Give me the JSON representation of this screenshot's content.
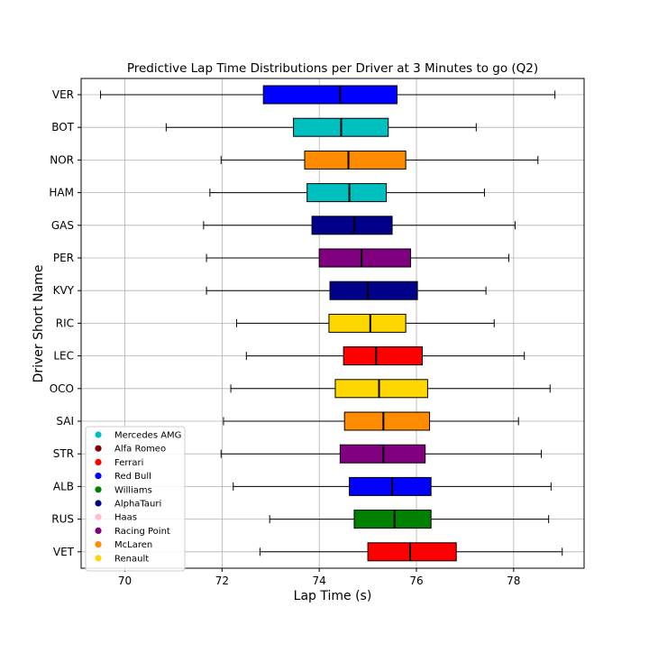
{
  "chart_data": {
    "type": "boxplot",
    "orientation": "horizontal",
    "title": "Predictive Lap Time Distributions per Driver at 3 Minutes to go (Q2)",
    "xlabel": "Lap Time (s)",
    "ylabel": "Driver Short Name",
    "xlim": [
      69.1,
      79.45
    ],
    "xticks": [
      70,
      72,
      74,
      76,
      78
    ],
    "grid": true,
    "legend_position": "lower-left",
    "legend": [
      {
        "team": "Mercedes AMG",
        "color": "#00bfbf"
      },
      {
        "team": "Alfa Romeo",
        "color": "#800000"
      },
      {
        "team": "Ferrari",
        "color": "#ff0000"
      },
      {
        "team": "Red Bull",
        "color": "#0000ff"
      },
      {
        "team": "Williams",
        "color": "#008000"
      },
      {
        "team": "AlphaTauri",
        "color": "#00008b"
      },
      {
        "team": "Haas",
        "color": "#ffc0cb"
      },
      {
        "team": "Racing Point",
        "color": "#800080"
      },
      {
        "team": "McLaren",
        "color": "#ff8c00"
      },
      {
        "team": "Renault",
        "color": "#ffd700"
      }
    ],
    "drivers": [
      {
        "name": "VER",
        "team": "Red Bull",
        "color": "#0000ff",
        "whisker_low": 69.5,
        "q1": 72.85,
        "median": 74.43,
        "q3": 75.6,
        "whisker_high": 78.85
      },
      {
        "name": "BOT",
        "team": "Mercedes AMG",
        "color": "#00bfbf",
        "whisker_low": 70.85,
        "q1": 73.47,
        "median": 74.45,
        "q3": 75.42,
        "whisker_high": 77.23
      },
      {
        "name": "NOR",
        "team": "McLaren",
        "color": "#ff8c00",
        "whisker_low": 71.98,
        "q1": 73.7,
        "median": 74.6,
        "q3": 75.78,
        "whisker_high": 78.5
      },
      {
        "name": "HAM",
        "team": "Mercedes AMG",
        "color": "#00bfbf",
        "whisker_low": 71.75,
        "q1": 73.75,
        "median": 74.62,
        "q3": 75.38,
        "whisker_high": 77.4
      },
      {
        "name": "GAS",
        "team": "AlphaTauri",
        "color": "#00008b",
        "whisker_low": 71.62,
        "q1": 73.85,
        "median": 74.72,
        "q3": 75.5,
        "whisker_high": 78.03
      },
      {
        "name": "PER",
        "team": "Racing Point",
        "color": "#800080",
        "whisker_low": 71.68,
        "q1": 74.0,
        "median": 74.87,
        "q3": 75.88,
        "whisker_high": 77.9
      },
      {
        "name": "KVY",
        "team": "AlphaTauri",
        "color": "#00008b",
        "whisker_low": 71.68,
        "q1": 74.22,
        "median": 75.0,
        "q3": 76.02,
        "whisker_high": 77.43
      },
      {
        "name": "RIC",
        "team": "Renault",
        "color": "#ffd700",
        "whisker_low": 72.3,
        "q1": 74.2,
        "median": 75.05,
        "q3": 75.78,
        "whisker_high": 77.6
      },
      {
        "name": "LEC",
        "team": "Ferrari",
        "color": "#ff0000",
        "whisker_low": 72.5,
        "q1": 74.5,
        "median": 75.17,
        "q3": 76.12,
        "whisker_high": 78.22
      },
      {
        "name": "OCO",
        "team": "Renault",
        "color": "#ffd700",
        "whisker_low": 72.18,
        "q1": 74.33,
        "median": 75.23,
        "q3": 76.23,
        "whisker_high": 78.75
      },
      {
        "name": "SAI",
        "team": "McLaren",
        "color": "#ff8c00",
        "whisker_low": 72.03,
        "q1": 74.52,
        "median": 75.32,
        "q3": 76.27,
        "whisker_high": 78.1
      },
      {
        "name": "STR",
        "team": "Racing Point",
        "color": "#800080",
        "whisker_low": 71.98,
        "q1": 74.43,
        "median": 75.32,
        "q3": 76.18,
        "whisker_high": 78.57
      },
      {
        "name": "ALB",
        "team": "Red Bull",
        "color": "#0000ff",
        "whisker_low": 72.23,
        "q1": 74.62,
        "median": 75.5,
        "q3": 76.3,
        "whisker_high": 78.77
      },
      {
        "name": "RUS",
        "team": "Williams",
        "color": "#008000",
        "whisker_low": 72.98,
        "q1": 74.72,
        "median": 75.55,
        "q3": 76.3,
        "whisker_high": 78.72
      },
      {
        "name": "VET",
        "team": "Ferrari",
        "color": "#ff0000",
        "whisker_low": 72.78,
        "q1": 75.0,
        "median": 75.87,
        "q3": 76.82,
        "whisker_high": 79.0
      }
    ]
  }
}
